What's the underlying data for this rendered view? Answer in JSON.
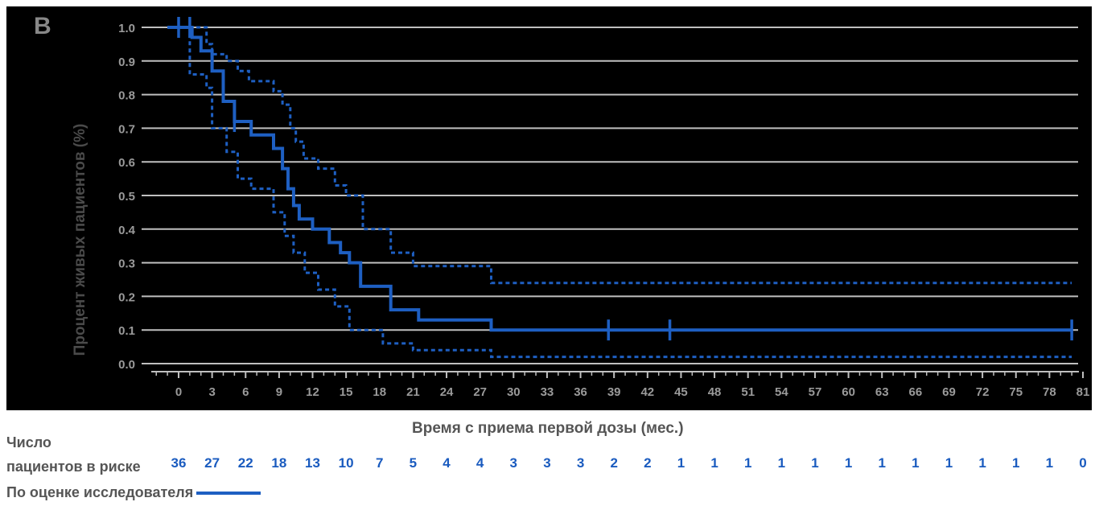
{
  "panel_letter": "B",
  "colors": {
    "background": "#000000",
    "gridline": "#bfbfbf",
    "curve": "#1e5fc2",
    "axis_text": "#9a9a9a",
    "risk_numbers": "#1a5bbf"
  },
  "chart_data": {
    "type": "line",
    "xlabel": "Время с приема первой дозы (мес.)",
    "ylabel": "Процент живых пациентов (%)",
    "xlim": [
      -3,
      81
    ],
    "ylim": [
      0,
      1
    ],
    "grid": true,
    "x_ticks": [
      "0",
      "3",
      "6",
      "9",
      "12",
      "15",
      "18",
      "21",
      "24",
      "27",
      "30",
      "33",
      "36",
      "39",
      "42",
      "45",
      "48",
      "51",
      "54",
      "57",
      "60",
      "63",
      "66",
      "69",
      "72",
      "75",
      "78",
      "81"
    ],
    "y_ticks": [
      "0.0",
      "0.1",
      "0.2",
      "0.3",
      "0.4",
      "0.5",
      "0.6",
      "0.7",
      "0.8",
      "0.9",
      "1.0"
    ],
    "series": [
      {
        "name": "По оценке исследователя",
        "style": "solid",
        "points": [
          [
            -1,
            1.0
          ],
          [
            1.2,
            1.0
          ],
          [
            1.2,
            0.97
          ],
          [
            2,
            0.97
          ],
          [
            2,
            0.93
          ],
          [
            3,
            0.93
          ],
          [
            3,
            0.87
          ],
          [
            4,
            0.87
          ],
          [
            4,
            0.78
          ],
          [
            5,
            0.78
          ],
          [
            5,
            0.72
          ],
          [
            6.5,
            0.72
          ],
          [
            6.5,
            0.68
          ],
          [
            8.5,
            0.68
          ],
          [
            8.5,
            0.64
          ],
          [
            9.3,
            0.64
          ],
          [
            9.3,
            0.58
          ],
          [
            9.8,
            0.58
          ],
          [
            9.8,
            0.52
          ],
          [
            10.3,
            0.52
          ],
          [
            10.3,
            0.47
          ],
          [
            10.8,
            0.47
          ],
          [
            10.8,
            0.43
          ],
          [
            12,
            0.43
          ],
          [
            12,
            0.4
          ],
          [
            13.5,
            0.4
          ],
          [
            13.5,
            0.36
          ],
          [
            14.5,
            0.36
          ],
          [
            14.5,
            0.33
          ],
          [
            15.3,
            0.33
          ],
          [
            15.3,
            0.3
          ],
          [
            16.3,
            0.3
          ],
          [
            16.3,
            0.23
          ],
          [
            19,
            0.23
          ],
          [
            19,
            0.16
          ],
          [
            21.5,
            0.16
          ],
          [
            21.5,
            0.13
          ],
          [
            28,
            0.13
          ],
          [
            28,
            0.1
          ],
          [
            80,
            0.1
          ]
        ],
        "censor_x": [
          0,
          1,
          5,
          38.5,
          44,
          80
        ]
      },
      {
        "name": "",
        "style": "dashed",
        "points": [
          [
            -1,
            1.0
          ],
          [
            2.5,
            1.0
          ],
          [
            2.5,
            0.95
          ],
          [
            3,
            0.95
          ],
          [
            3,
            0.92
          ],
          [
            4.3,
            0.92
          ],
          [
            4.3,
            0.9
          ],
          [
            5.3,
            0.9
          ],
          [
            5.3,
            0.87
          ],
          [
            6.3,
            0.87
          ],
          [
            6.3,
            0.84
          ],
          [
            8.5,
            0.84
          ],
          [
            8.5,
            0.81
          ],
          [
            9.3,
            0.81
          ],
          [
            9.3,
            0.77
          ],
          [
            10,
            0.77
          ],
          [
            10,
            0.7
          ],
          [
            10.5,
            0.7
          ],
          [
            10.5,
            0.66
          ],
          [
            11.2,
            0.66
          ],
          [
            11.2,
            0.61
          ],
          [
            12.5,
            0.61
          ],
          [
            12.5,
            0.58
          ],
          [
            14,
            0.58
          ],
          [
            14,
            0.53
          ],
          [
            15,
            0.53
          ],
          [
            15,
            0.5
          ],
          [
            16.5,
            0.5
          ],
          [
            16.5,
            0.4
          ],
          [
            19,
            0.4
          ],
          [
            19,
            0.33
          ],
          [
            21,
            0.33
          ],
          [
            21,
            0.29
          ],
          [
            28,
            0.29
          ],
          [
            28,
            0.24
          ],
          [
            80,
            0.24
          ]
        ]
      },
      {
        "name": "",
        "style": "dashed",
        "points": [
          [
            -1,
            1.0
          ],
          [
            1,
            1.0
          ],
          [
            1,
            0.86
          ],
          [
            2.5,
            0.86
          ],
          [
            2.5,
            0.82
          ],
          [
            3,
            0.82
          ],
          [
            3,
            0.7
          ],
          [
            4.3,
            0.7
          ],
          [
            4.3,
            0.63
          ],
          [
            5.3,
            0.63
          ],
          [
            5.3,
            0.55
          ],
          [
            6.5,
            0.55
          ],
          [
            6.5,
            0.52
          ],
          [
            8.5,
            0.52
          ],
          [
            8.5,
            0.45
          ],
          [
            9.5,
            0.45
          ],
          [
            9.5,
            0.38
          ],
          [
            10.3,
            0.38
          ],
          [
            10.3,
            0.33
          ],
          [
            11.3,
            0.33
          ],
          [
            11.3,
            0.27
          ],
          [
            12.5,
            0.27
          ],
          [
            12.5,
            0.22
          ],
          [
            14,
            0.22
          ],
          [
            14,
            0.17
          ],
          [
            15.3,
            0.17
          ],
          [
            15.3,
            0.1
          ],
          [
            18.3,
            0.1
          ],
          [
            18.3,
            0.06
          ],
          [
            21,
            0.06
          ],
          [
            21,
            0.04
          ],
          [
            28,
            0.04
          ],
          [
            28,
            0.02
          ],
          [
            80,
            0.02
          ]
        ]
      }
    ]
  },
  "risk_table": {
    "title_line1": "Число",
    "title_line2": "пациентов в риске",
    "counts": [
      "36",
      "27",
      "22",
      "18",
      "13",
      "10",
      "7",
      "5",
      "4",
      "4",
      "3",
      "3",
      "3",
      "2",
      "2",
      "1",
      "1",
      "1",
      "1",
      "1",
      "1",
      "1",
      "1",
      "1",
      "1",
      "1",
      "1",
      "0"
    ]
  },
  "legend": {
    "label": "По оценке исследователя"
  }
}
